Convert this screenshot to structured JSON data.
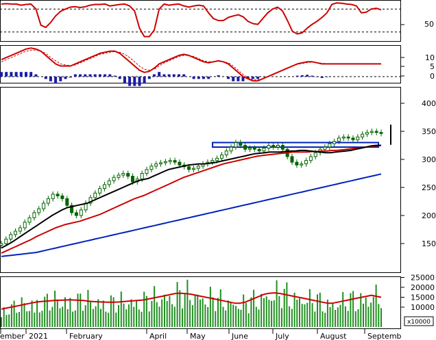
{
  "chart_data": {
    "type": "line",
    "x_ticks": [
      "ember",
      "2021",
      "February",
      "April",
      "May",
      "June",
      "July",
      "August",
      "Septemb"
    ],
    "panels": {
      "stochastic": {
        "y_ticks": [
          "50"
        ],
        "series": [
          {
            "color": "#cc0000",
            "values": [
              93,
              94,
              93,
              93,
              90,
              92,
              93,
              80,
              38,
              32,
              45,
              62,
              74,
              80,
              85,
              86,
              84,
              86,
              90,
              92,
              92,
              93,
              88,
              90,
              92,
              93,
              88,
              75,
              30,
              8,
              8,
              25,
              80,
              93,
              90,
              92,
              93,
              88,
              85,
              88,
              90,
              88,
              70,
              55,
              50,
              50,
              58,
              62,
              65,
              60,
              48,
              42,
              40,
              55,
              70,
              80,
              85,
              75,
              50,
              22,
              15,
              18,
              30,
              40,
              48,
              58,
              70,
              92,
              96,
              95,
              93,
              92,
              88,
              70,
              72,
              80,
              82,
              78
            ]
          }
        ]
      },
      "macd": {
        "y_ticks": [
          "10",
          "5",
          "0"
        ],
        "series": [
          {
            "color": "#cc0000",
            "values": [
              8,
              9,
              10,
              11,
              12,
              13,
              13.5,
              13,
              12,
              10,
              8,
              6,
              5,
              5,
              5,
              6,
              7,
              8,
              9,
              10,
              11,
              11.5,
              12,
              12,
              11,
              9,
              7,
              5,
              3,
              2,
              2.5,
              4,
              6,
              7,
              8,
              9,
              10,
              10.5,
              10,
              9,
              8,
              7,
              6.5,
              7,
              7.5,
              7,
              6,
              4,
              2,
              0,
              -1,
              -2,
              -2,
              -1,
              0,
              1,
              2,
              3,
              4,
              5,
              6,
              6.5,
              7,
              7,
              6.5,
              6,
              6,
              6,
              6,
              6,
              6,
              6,
              6,
              6,
              6,
              6,
              6,
              6
            ]
          },
          {
            "color": "#cc0000",
            "values": [
              7,
              8,
              9,
              10,
              11,
              12,
              12.5,
              12.5,
              12,
              11,
              9,
              7.5,
              6,
              5.5,
              5.2,
              5.5,
              6.5,
              7.5,
              8.5,
              9.5,
              10.5,
              11,
              11.5,
              11.8,
              11.5,
              10.5,
              9,
              7,
              5,
              3.5,
              3,
              3.5,
              5,
              6.5,
              7.5,
              8.5,
              9.5,
              10,
              10,
              9.5,
              8.5,
              7.5,
              7,
              7,
              7.2,
              7,
              6.5,
              5,
              3,
              1,
              -0.5,
              -1.5,
              -1.5,
              -1,
              0,
              1,
              2,
              3,
              4,
              5,
              5.8,
              6.2,
              6.6,
              6.8,
              6.6,
              6.3,
              6.1,
              6,
              6,
              6,
              6,
              6,
              6,
              6,
              6,
              6,
              6,
              6
            ]
          }
        ],
        "histogram": [
          1,
          1,
          1,
          1,
          1,
          1,
          1,
          0.5,
          0,
          -0.5,
          -1,
          -1.5,
          -1,
          -0.5,
          -0.2,
          0.5,
          0.5,
          0.5,
          0.5,
          0.5,
          0.5,
          0.5,
          0.5,
          0.2,
          -0.5,
          -1.5,
          -2,
          -2,
          -2,
          -1.5,
          -0.5,
          0.5,
          1,
          0.5,
          0.5,
          0.5,
          0.5,
          0.5,
          0,
          -0.5,
          -0.5,
          -0.5,
          -0.5,
          0,
          0.3,
          0,
          -0.5,
          -1,
          -1,
          -1,
          -0.5,
          -0.5,
          -0.5,
          0,
          0,
          0,
          0,
          0,
          0,
          0,
          0.2,
          0.3,
          0.4,
          0.2,
          -0.1,
          -0.3,
          -0.1,
          0,
          0,
          0,
          0,
          0,
          0,
          0,
          0,
          0,
          0,
          0
        ]
      },
      "price": {
        "y_ticks": [
          "400",
          "350",
          "300",
          "250",
          "200",
          "150"
        ],
        "close": [
          150,
          158,
          166,
          172,
          178,
          188,
          196,
          205,
          212,
          222,
          230,
          238,
          235,
          230,
          218,
          205,
          200,
          210,
          222,
          232,
          240,
          248,
          255,
          262,
          268,
          272,
          275,
          270,
          260,
          265,
          275,
          282,
          288,
          292,
          294,
          296,
          298,
          295,
          290,
          287,
          282,
          284,
          288,
          292,
          295,
          298,
          302,
          308,
          315,
          322,
          330,
          325,
          318,
          320,
          318,
          315,
          320,
          325,
          322,
          325,
          318,
          305,
          295,
          290,
          292,
          298,
          305,
          312,
          318,
          322,
          328,
          332,
          338,
          340,
          338,
          335,
          340,
          345,
          348,
          350,
          348,
          346
        ],
        "ma_short": {
          "color": "#000000",
          "values": [
            142,
            147,
            152,
            158,
            164,
            170,
            176,
            182,
            188,
            194,
            200,
            205,
            210,
            214,
            216,
            218,
            220,
            222,
            226,
            230,
            234,
            238,
            242,
            246,
            250,
            254,
            258,
            262,
            264,
            266,
            270,
            274,
            278,
            282,
            284,
            286,
            288,
            290,
            291,
            292,
            292,
            293,
            294,
            296,
            298,
            300,
            302,
            304,
            306,
            308,
            310,
            311,
            312,
            313,
            313,
            313,
            314,
            315,
            315,
            316,
            316,
            315,
            314,
            313,
            312,
            312,
            313,
            314,
            315,
            316,
            318,
            320,
            322,
            324,
            325,
            325
          ]
        },
        "ma_mid": {
          "color": "#cc0000",
          "values": [
            133,
            137,
            141,
            145,
            149,
            153,
            157,
            162,
            166,
            170,
            174,
            178,
            181,
            184,
            186,
            188,
            190,
            193,
            196,
            199,
            202,
            206,
            210,
            214,
            218,
            222,
            226,
            230,
            233,
            236,
            240,
            244,
            248,
            252,
            256,
            260,
            264,
            268,
            271,
            274,
            277,
            280,
            283,
            286,
            289,
            292,
            294,
            296,
            298,
            300,
            302,
            304,
            306,
            307,
            308,
            309,
            310,
            311,
            312,
            313,
            313,
            313,
            313,
            314,
            314,
            315,
            315,
            316,
            316,
            317,
            318,
            319,
            320,
            321,
            322,
            323,
            324,
            325
          ]
        },
        "ma_long": {
          "color": "#0022bb",
          "values": [
            127,
            128,
            129,
            130,
            131,
            132,
            133,
            134,
            136,
            138,
            140,
            142,
            144,
            146,
            148,
            150,
            152,
            154,
            156,
            158,
            160,
            162,
            164,
            166,
            168,
            170,
            172,
            174,
            176,
            178,
            180,
            182,
            184,
            186,
            188,
            190,
            192,
            194,
            196,
            198,
            200,
            202,
            204,
            206,
            208,
            210,
            212,
            214,
            216,
            218,
            220,
            222,
            224,
            226,
            228,
            230,
            232,
            234,
            236,
            238,
            240,
            242,
            244,
            246,
            248,
            250,
            252,
            254,
            256,
            258,
            260,
            262,
            264,
            266,
            268,
            270,
            272,
            274
          ]
        },
        "resistance_band": [
          322,
          330
        ]
      },
      "volume": {
        "y_ticks": [
          "25000",
          "20000",
          "15000",
          "10000"
        ],
        "unit_label": "x10000",
        "ma": {
          "color": "#cc0000",
          "values": [
            9000,
            9500,
            10000,
            10500,
            11000,
            11500,
            12000,
            12500,
            12800,
            13000,
            13200,
            13400,
            13500,
            13600,
            13700,
            13600,
            13500,
            13300,
            13000,
            12800,
            12700,
            12600,
            12500,
            12500,
            12600,
            12800,
            13000,
            13200,
            13400,
            13600,
            14000,
            14500,
            15000,
            15500,
            16000,
            16500,
            17000,
            17000,
            16800,
            16500,
            16000,
            15500,
            15000,
            14500,
            14000,
            13500,
            13000,
            12500,
            12000,
            12000,
            12500,
            13500,
            14500,
            15500,
            16500,
            17000,
            17200,
            17000,
            16500,
            16000,
            15500,
            15000,
            14500,
            14000,
            13500,
            13000,
            12500,
            12000,
            12000,
            12500,
            13000,
            13500,
            14000,
            14500,
            15000,
            15500,
            16000,
            15500,
            15000
          ]
        }
      }
    }
  }
}
